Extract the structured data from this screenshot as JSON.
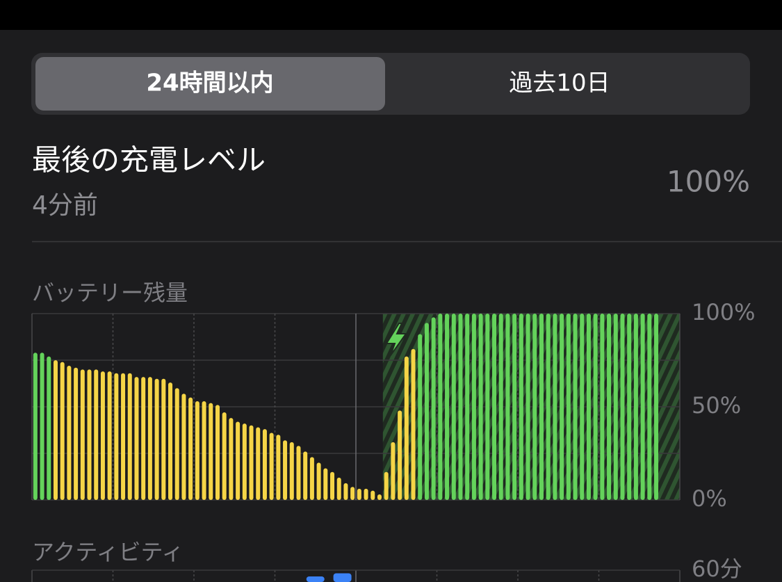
{
  "segmented": {
    "options": [
      "24時間以内",
      "過去10日"
    ],
    "selected": 0
  },
  "last_charge": {
    "title": "最後の充電レベル",
    "time": "4分前",
    "value": "100%"
  },
  "chart_data": [
    {
      "type": "bar",
      "title": "バッテリー残量",
      "values": [
        79,
        79,
        77,
        75,
        74,
        72,
        71,
        70,
        70,
        70,
        69,
        69,
        68,
        68,
        68,
        66,
        66,
        66,
        65,
        65,
        63,
        60,
        57,
        55,
        53,
        53,
        52,
        51,
        47,
        44,
        42,
        41,
        40,
        39,
        38,
        36,
        35,
        32,
        31,
        29,
        26,
        23,
        20,
        17,
        15,
        12,
        9,
        7,
        6,
        6,
        5,
        3,
        15,
        31,
        48,
        77,
        81,
        89,
        95,
        98,
        100,
        100,
        100,
        100,
        100,
        100,
        100,
        100,
        100,
        100,
        100,
        100,
        100,
        100,
        100,
        100,
        100,
        100,
        100,
        100,
        100,
        100,
        100,
        100,
        100,
        100,
        100,
        100,
        100,
        100,
        100,
        100,
        100
      ],
      "colors": [
        "#64d35b",
        "#64d35b",
        "#64d35b",
        "#f5d547",
        "#f5d547",
        "#f5d547",
        "#f5d547",
        "#f5d547",
        "#f5d547",
        "#f5d547",
        "#f5d547",
        "#f5d547",
        "#f5d547",
        "#f5d547",
        "#f5d547",
        "#f5d547",
        "#f5d547",
        "#f5d547",
        "#f5d547",
        "#f5d547",
        "#f5d547",
        "#f5d547",
        "#f5d547",
        "#f5d547",
        "#f5d547",
        "#f5d547",
        "#f5d547",
        "#f5d547",
        "#f5d547",
        "#f5d547",
        "#f5d547",
        "#f5d547",
        "#f5d547",
        "#f5d547",
        "#f5d547",
        "#f5d547",
        "#f5d547",
        "#f5d547",
        "#f5d547",
        "#f5d547",
        "#f5d547",
        "#f5d547",
        "#f5d547",
        "#f5d547",
        "#f5d547",
        "#f5d547",
        "#f5d547",
        "#f5d547",
        "#f5d547",
        "#f5d547",
        "#f5d547",
        "#f5d547",
        "#f5d547",
        "#f5d547",
        "#f5d547",
        "#f5d547",
        "#f5d547",
        "#64d35b",
        "#64d35b",
        "#64d35b",
        "#64d35b",
        "#64d35b",
        "#64d35b",
        "#64d35b",
        "#64d35b",
        "#64d35b",
        "#64d35b",
        "#64d35b",
        "#64d35b",
        "#64d35b",
        "#64d35b",
        "#64d35b",
        "#64d35b",
        "#64d35b",
        "#64d35b",
        "#64d35b",
        "#64d35b",
        "#64d35b",
        "#64d35b",
        "#64d35b",
        "#64d35b",
        "#64d35b",
        "#64d35b",
        "#64d35b",
        "#64d35b",
        "#64d35b",
        "#64d35b",
        "#64d35b",
        "#64d35b",
        "#64d35b",
        "#64d35b",
        "#64d35b",
        "#64d35b"
      ],
      "ylim": [
        0,
        100
      ],
      "yticks": [
        {
          "value": 0,
          "label": "0%"
        },
        {
          "value": 50,
          "label": "50%"
        },
        {
          "value": 100,
          "label": "100%"
        }
      ],
      "ygrid": [
        0,
        25,
        50,
        75,
        100
      ]
    },
    {
      "type": "bar",
      "title": "アクティビティ",
      "values": [
        null,
        null,
        null,
        null,
        null,
        null,
        null,
        null,
        null,
        null,
        58,
        59,
        null,
        null,
        null,
        null,
        null,
        null,
        null,
        null,
        null,
        null,
        null,
        null
      ],
      "color": "#3b82f6",
      "ylim": [
        0,
        60
      ],
      "yticks": [
        {
          "value": 60,
          "label": "60分"
        }
      ]
    }
  ]
}
